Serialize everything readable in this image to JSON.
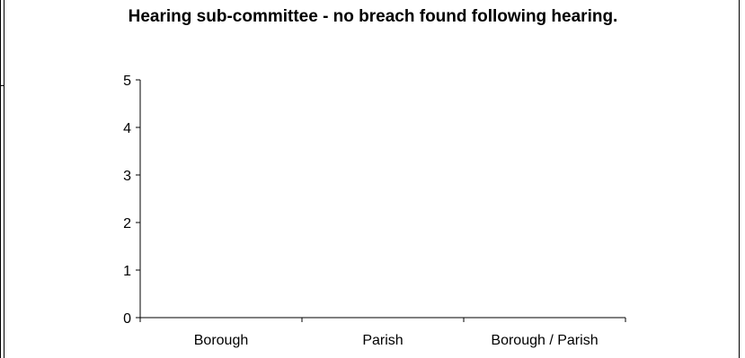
{
  "chart_data": {
    "type": "bar",
    "title": "Hearing sub-committee - no breach found following hearing.",
    "categories": [
      "Borough",
      "Parish",
      "Borough / Parish"
    ],
    "series": [
      {
        "values": [
          0,
          0,
          0
        ]
      }
    ],
    "xlabel": "",
    "ylabel": "",
    "ylim": [
      0,
      5
    ],
    "yticks": [
      0,
      1,
      2,
      3,
      4,
      5
    ],
    "grid": false,
    "legend": "none"
  }
}
